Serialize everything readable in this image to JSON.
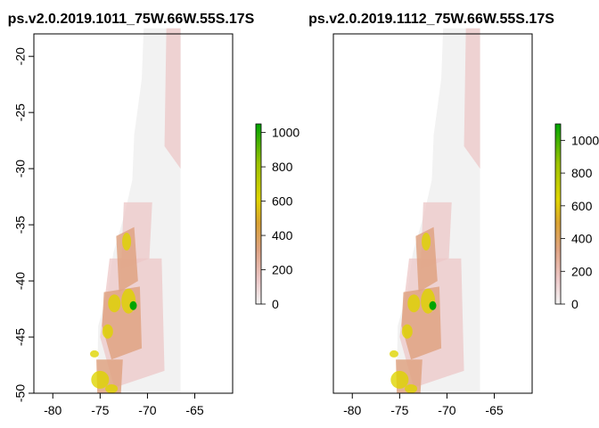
{
  "chart_data": [
    {
      "type": "heatmap",
      "title": "ps.v2.0.2019.1011_75W.66W.55S.17S",
      "xlabel": "",
      "ylabel": "",
      "xlim": [
        -82,
        -61
      ],
      "ylim": [
        -50,
        -18
      ],
      "x_ticks": [
        -80,
        -75,
        -70,
        -65
      ],
      "x_tick_labels": [
        "-80",
        "-75",
        "-70",
        "-65"
      ],
      "y_ticks": [
        -20,
        -25,
        -30,
        -35,
        -40,
        -45,
        -50
      ],
      "y_tick_labels": [
        "-20",
        "-25",
        "-30",
        "-35",
        "-40",
        "-45",
        "-50"
      ],
      "data_extent": {
        "lon": [
          -75.5,
          -66.5
        ],
        "lat": [
          -50,
          -17.5
        ]
      },
      "colorbar": {
        "range": [
          0,
          1050
        ],
        "ticks": [
          0,
          200,
          400,
          600,
          800,
          1000
        ],
        "tick_labels": [
          "0",
          "200",
          "400",
          "600",
          "800",
          "1000"
        ]
      },
      "grid": false
    },
    {
      "type": "heatmap",
      "title": "ps.v2.0.2019.1112_75W.66W.55S.17S",
      "xlabel": "",
      "ylabel": "",
      "xlim": [
        -82,
        -61
      ],
      "ylim": [
        -50,
        -18
      ],
      "x_ticks": [
        -80,
        -75,
        -70,
        -65
      ],
      "x_tick_labels": [
        "-80",
        "-75",
        "-70",
        "-65"
      ],
      "y_ticks": [],
      "y_tick_labels": [],
      "data_extent": {
        "lon": [
          -75.5,
          -66.5
        ],
        "lat": [
          -50,
          -17.5
        ]
      },
      "colorbar": {
        "range": [
          0,
          1100
        ],
        "ticks": [
          0,
          200,
          400,
          600,
          800,
          1000
        ],
        "tick_labels": [
          "0",
          "200",
          "400",
          "600",
          "800",
          "1000"
        ]
      },
      "grid": false
    }
  ],
  "colors": {
    "low": "#f2f2f2",
    "pink": "#ecc7c7",
    "tan": "#dfa383",
    "orange": "#d9a233",
    "yellow": "#dfd400",
    "green": "#00a400"
  }
}
